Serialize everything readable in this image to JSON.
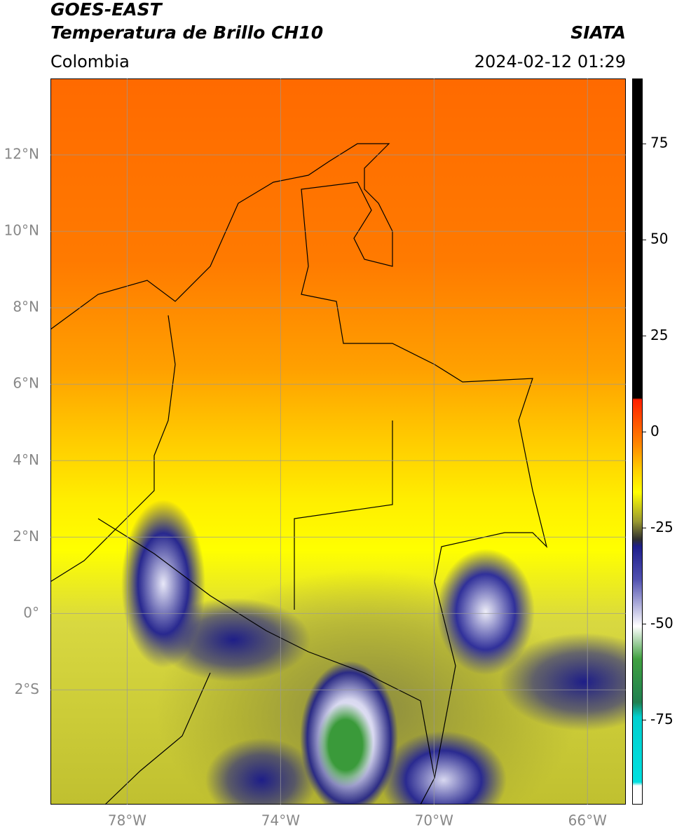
{
  "header": {
    "title": "GOES-EAST",
    "subtitle": "Temperatura de Brillo CH10",
    "organization": "SIATA",
    "region": "Colombia",
    "datetime": "2024-02-12 01:29"
  },
  "map": {
    "lonlim": [
      -80,
      -65
    ],
    "latlim": [
      -5,
      14
    ],
    "lon_ticks": [
      {
        "value": -78,
        "label": "78°W"
      },
      {
        "value": -74,
        "label": "74°W"
      },
      {
        "value": -70,
        "label": "70°W"
      },
      {
        "value": -66,
        "label": "66°W"
      }
    ],
    "lat_ticks": [
      {
        "value": 12,
        "label": "12°N"
      },
      {
        "value": 10,
        "label": "10°N"
      },
      {
        "value": 8,
        "label": "8°N"
      },
      {
        "value": 6,
        "label": "6°N"
      },
      {
        "value": 4,
        "label": "4°N"
      },
      {
        "value": 2,
        "label": "2°N"
      },
      {
        "value": 0,
        "label": "0°"
      },
      {
        "value": -2,
        "label": "2°S"
      }
    ],
    "grid": true
  },
  "colorbar": {
    "lim": [
      -97,
      92
    ],
    "ticks": [
      75,
      50,
      25,
      0,
      -25,
      -50,
      -75
    ]
  }
}
